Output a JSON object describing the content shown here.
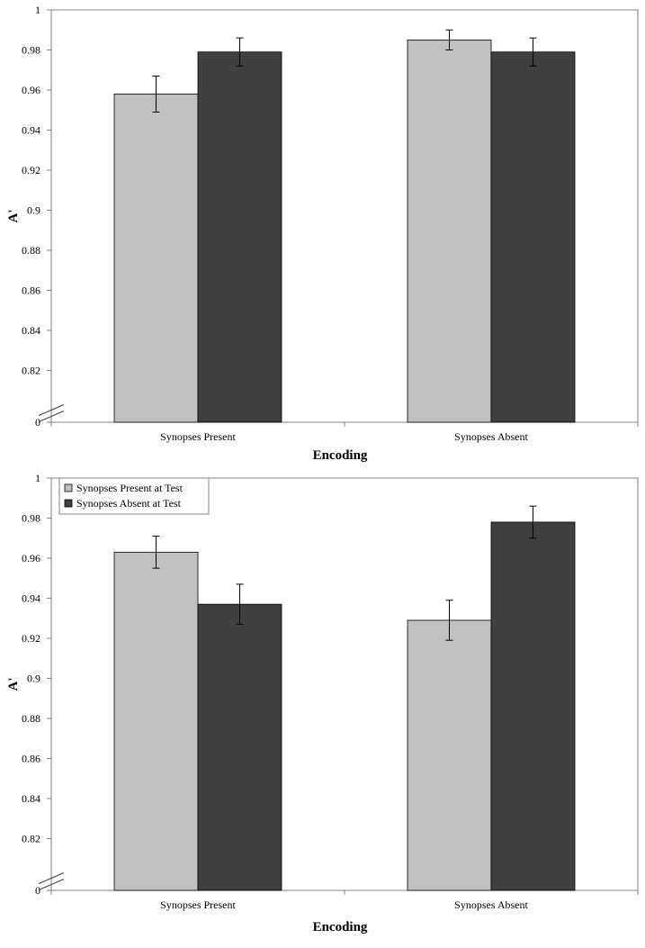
{
  "chart_data": [
    {
      "type": "bar",
      "categories": [
        "Synopses Present",
        "Synopses Absent"
      ],
      "series": [
        {
          "values": [
            0.958,
            0.985
          ],
          "errors": [
            0.009,
            0.005
          ],
          "color": "#c0c0c0"
        },
        {
          "values": [
            0.979,
            0.979
          ],
          "errors": [
            0.007,
            0.007
          ],
          "color": "#404040"
        }
      ],
      "xlabel": "Encoding",
      "ylabel": "A'",
      "ylim": [
        0.8,
        1.0
      ],
      "axis_break": true,
      "yticks": [
        0.82,
        0.84,
        0.86,
        0.88,
        0.9,
        0.92,
        0.94,
        0.96,
        0.98,
        1
      ],
      "ytick_labels": [
        "0.82",
        "0.84",
        "0.86",
        "0.88",
        "0.9",
        "0.92",
        "0.94",
        "0.96",
        "0.98",
        "1"
      ],
      "zero_label": "0",
      "grid": false,
      "legend": null
    },
    {
      "type": "bar",
      "categories": [
        "Synopses Present",
        "Synopses Absent"
      ],
      "series": [
        {
          "name": "Synopses Present at Test",
          "values": [
            0.963,
            0.929
          ],
          "errors": [
            0.008,
            0.01
          ],
          "color": "#c0c0c0"
        },
        {
          "name": "Synopses Absent at Test",
          "values": [
            0.937,
            0.978
          ],
          "errors": [
            0.01,
            0.008
          ],
          "color": "#404040"
        }
      ],
      "xlabel": "Encoding",
      "ylabel": "A'",
      "ylim": [
        0.8,
        1.0
      ],
      "axis_break": true,
      "yticks": [
        0.82,
        0.84,
        0.86,
        0.88,
        0.9,
        0.92,
        0.94,
        0.96,
        0.98,
        1
      ],
      "ytick_labels": [
        "0.82",
        "0.84",
        "0.86",
        "0.88",
        "0.9",
        "0.92",
        "0.94",
        "0.96",
        "0.98",
        "1"
      ],
      "zero_label": "0",
      "grid": false,
      "legend": "top-left"
    }
  ]
}
